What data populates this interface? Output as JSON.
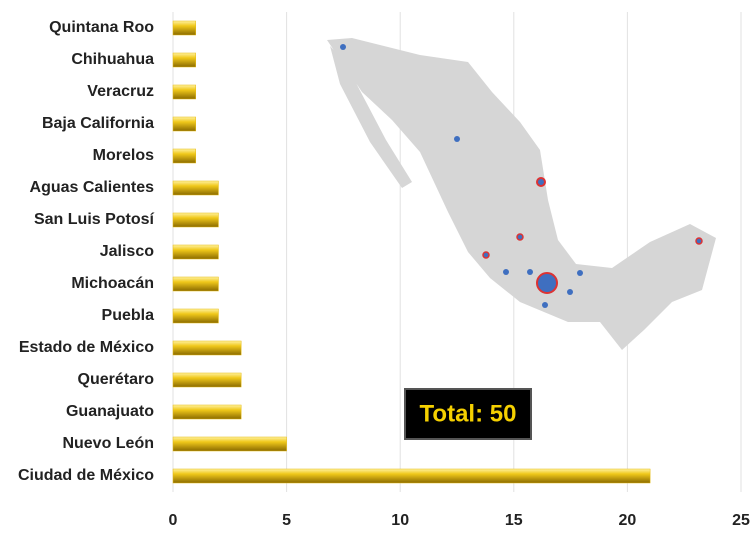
{
  "chart_data": {
    "type": "bar",
    "orientation": "horizontal",
    "categories": [
      "Quintana Roo",
      "Chihuahua",
      "Veracruz",
      "Baja California",
      "Morelos",
      "Aguas Calientes",
      "San Luis Potosí",
      "Jalisco",
      "Michoacán",
      "Puebla",
      "Estado de México",
      "Querétaro",
      "Guanajuato",
      "Nuevo León",
      "Ciudad de México"
    ],
    "values": [
      1,
      1,
      1,
      1,
      1,
      2,
      2,
      2,
      2,
      2,
      3,
      3,
      3,
      5,
      21
    ],
    "color": "#e6bb10",
    "xlim": [
      0,
      25
    ],
    "xticks": [
      0,
      5,
      10,
      15,
      20,
      25
    ],
    "grid": true,
    "annotation": "Total: 50"
  }
}
